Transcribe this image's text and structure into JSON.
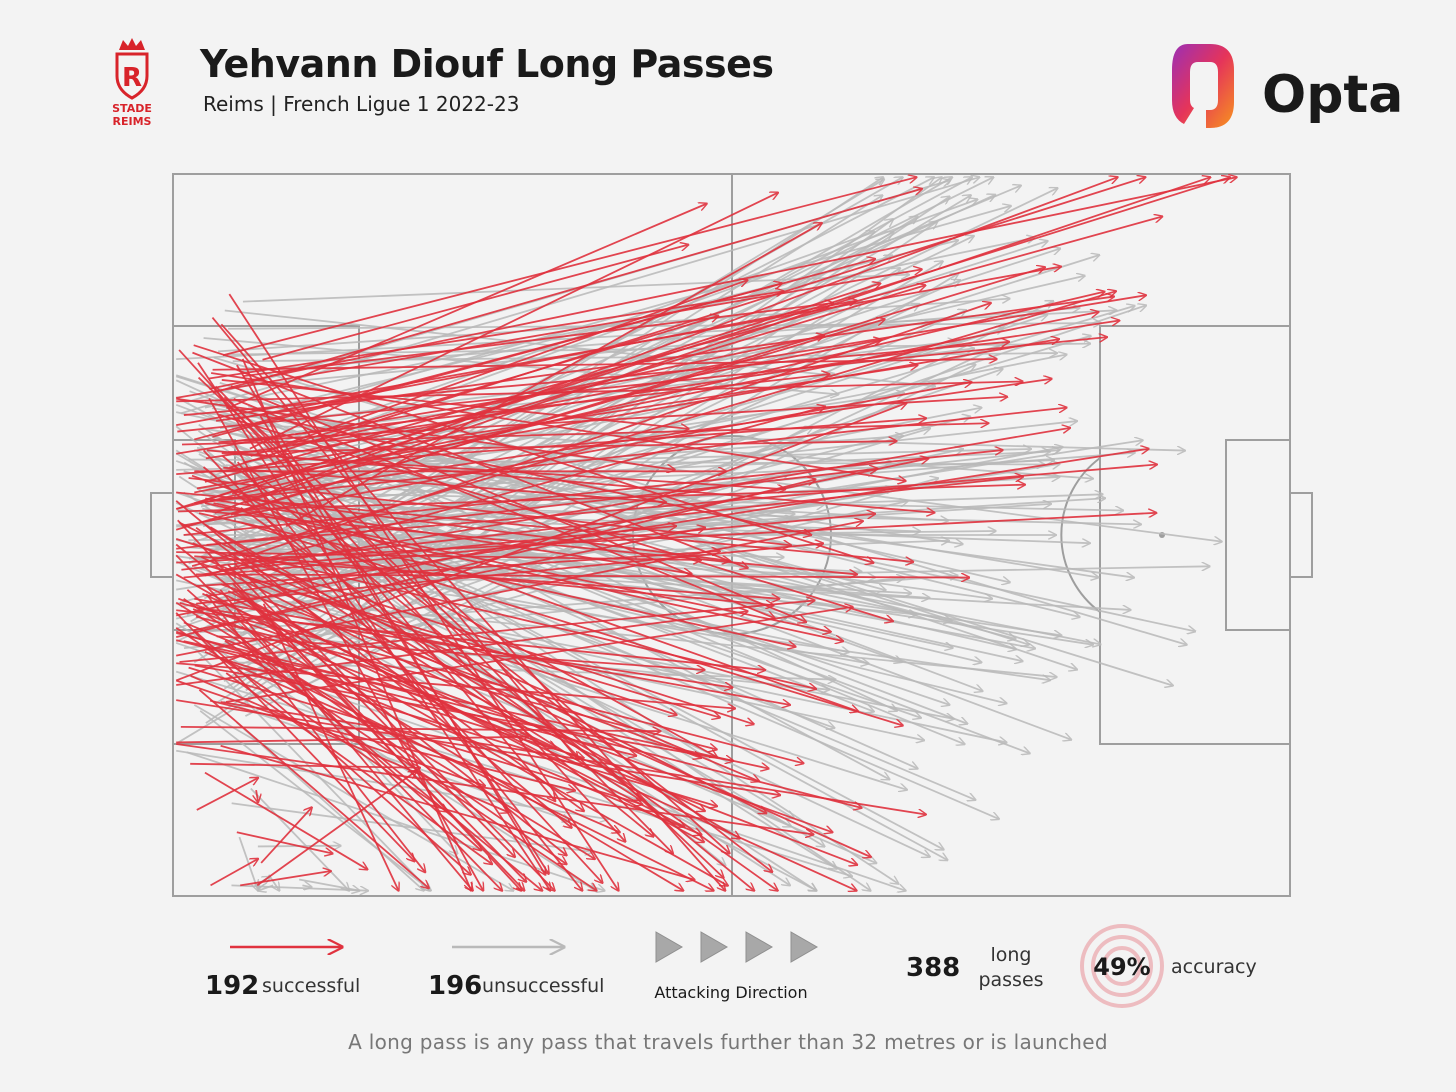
{
  "header": {
    "title": "Yehvann Diouf Long Passes",
    "subtitle": "Reims | French Ligue 1 2022-23",
    "club_badge_text": "STADE REIMS",
    "brand": "Opta",
    "club_badge_icon": "stade-reims-crest",
    "brand_icon": "opta-logo"
  },
  "colors": {
    "successful": "#e0323e",
    "unsuccessful": "#b9b9b9",
    "pitch_lines": "#9e9e9e",
    "background": "#f3f3f3"
  },
  "chart_data": {
    "type": "pass-map",
    "pitch": {
      "length": 105,
      "width": 68,
      "direction": "left-to-right"
    },
    "successful_count": 192,
    "unsuccessful_count": 196,
    "passes_successful_sample": [
      [
        0.5,
        40,
        62,
        62
      ],
      [
        6,
        62,
        15,
        64
      ],
      [
        2,
        43,
        28,
        66
      ],
      [
        4,
        37,
        50,
        60
      ],
      [
        3,
        31,
        63,
        44
      ],
      [
        5,
        28,
        70,
        18
      ],
      [
        2,
        25,
        66,
        8
      ],
      [
        1,
        38,
        66,
        32
      ],
      [
        9,
        26,
        54,
        10
      ],
      [
        2,
        30,
        87,
        13
      ],
      [
        3,
        29,
        93,
        4
      ],
      [
        1,
        40,
        37,
        65
      ],
      [
        5,
        22,
        60,
        34
      ],
      [
        3,
        45,
        42,
        62
      ],
      [
        2,
        28,
        52,
        28
      ],
      [
        1,
        34,
        78,
        26
      ],
      [
        4,
        20,
        47,
        64
      ],
      [
        2,
        40,
        58,
        50
      ],
      [
        3,
        33,
        44,
        59
      ],
      [
        6,
        18,
        35,
        66
      ],
      [
        2,
        36,
        57,
        40
      ],
      [
        5,
        47,
        30,
        65
      ],
      [
        2,
        31,
        84,
        22
      ],
      [
        1,
        44,
        56,
        56
      ]
    ],
    "passes_unsuccessful_sample": [
      [
        9,
        66,
        10,
        70
      ],
      [
        2,
        50,
        32,
        70
      ],
      [
        3,
        35,
        66,
        38
      ],
      [
        4,
        30,
        77,
        40
      ],
      [
        2,
        26,
        73,
        50
      ],
      [
        5,
        36,
        76,
        22
      ],
      [
        1,
        34,
        83,
        34
      ],
      [
        3,
        31,
        91,
        33
      ],
      [
        6,
        20,
        71,
        14
      ],
      [
        2,
        46,
        70,
        4
      ],
      [
        4,
        40,
        66,
        28
      ],
      [
        1,
        28,
        76,
        46
      ],
      [
        3,
        22,
        81,
        6
      ],
      [
        2,
        33,
        84,
        17
      ],
      [
        5,
        27,
        70,
        56
      ],
      [
        6,
        40,
        74,
        10
      ],
      [
        2,
        37,
        69,
        58
      ],
      [
        3,
        24,
        87,
        38
      ],
      [
        1,
        30,
        58,
        67
      ],
      [
        4,
        45,
        75,
        2
      ]
    ],
    "legend": {
      "successful": {
        "value": "192",
        "label": "successful"
      },
      "unsuccessful": {
        "value": "196",
        "label": "unsuccessful"
      },
      "direction_label": "Attacking Direction",
      "total": {
        "value": "388",
        "label_line1": "long",
        "label_line2": "passes"
      },
      "accuracy": {
        "value": "49%",
        "label": "accuracy"
      }
    }
  },
  "footnote": "A long pass is any pass that travels further than 32 metres or is launched"
}
